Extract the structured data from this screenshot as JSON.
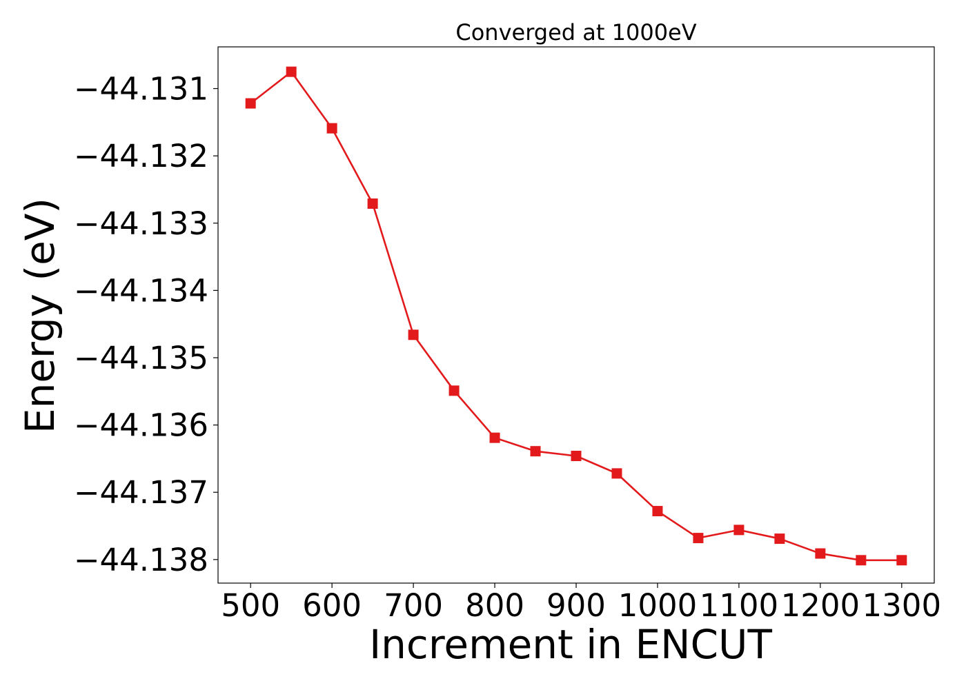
{
  "chart_data": {
    "type": "line",
    "title": "Converged at 1000eV",
    "xlabel": "Increment in ENCUT",
    "ylabel": "Energy (eV)",
    "xlim": [
      460,
      1340
    ],
    "ylim": [
      -44.13835,
      -44.13038
    ],
    "xticks": [
      500,
      600,
      700,
      800,
      900,
      1000,
      1100,
      1200,
      1300
    ],
    "xtick_labels": [
      "500",
      "600",
      "700",
      "800",
      "900",
      "1000",
      "1100",
      "1200",
      "1300"
    ],
    "yticks": [
      -44.131,
      -44.132,
      -44.133,
      -44.134,
      -44.135,
      -44.136,
      -44.137,
      -44.138
    ],
    "ytick_labels": [
      "−44.131",
      "−44.132",
      "−44.133",
      "−44.134",
      "−44.135",
      "−44.136",
      "−44.137",
      "−44.138"
    ],
    "grid": false,
    "series": [
      {
        "color": "#e31a1c",
        "marker": "square",
        "x": [
          500,
          550,
          600,
          650,
          700,
          750,
          800,
          850,
          900,
          950,
          1000,
          1050,
          1100,
          1150,
          1200,
          1250,
          1300
        ],
        "y": [
          -44.13122,
          -44.13075,
          -44.13159,
          -44.13271,
          -44.13466,
          -44.13549,
          -44.13619,
          -44.13639,
          -44.13646,
          -44.13672,
          -44.13728,
          -44.13768,
          -44.13756,
          -44.13769,
          -44.13791,
          -44.13801,
          -44.13801
        ]
      }
    ]
  }
}
